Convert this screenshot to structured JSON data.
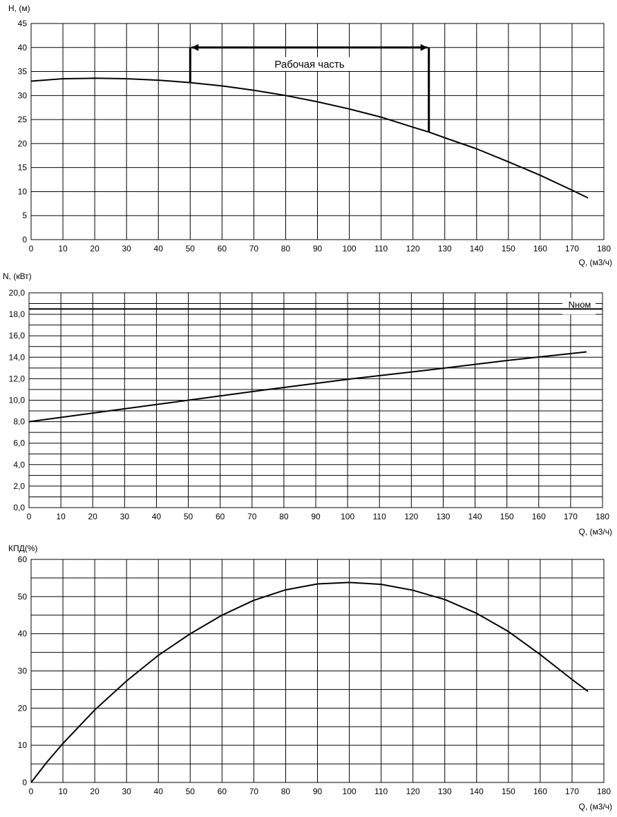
{
  "charts_header": "",
  "chart_data": [
    {
      "type": "line",
      "ylabel": "H, (м)",
      "xlabel": "Q, (м3/ч)",
      "xlim": [
        0,
        180
      ],
      "ylim": [
        0,
        45
      ],
      "xticks": [
        0,
        10,
        20,
        30,
        40,
        50,
        60,
        70,
        80,
        90,
        100,
        110,
        120,
        130,
        140,
        150,
        160,
        170,
        180
      ],
      "xtick_labels": [
        "0",
        "10",
        "20",
        "30",
        "40",
        "50",
        "60",
        "70",
        "80",
        "90",
        "100",
        "110",
        "120",
        "130",
        "140",
        "150",
        "160",
        "170",
        "180"
      ],
      "yticks": [
        0,
        5,
        10,
        15,
        20,
        25,
        30,
        35,
        40,
        45
      ],
      "ytick_labels": [
        "0",
        "5",
        "10",
        "15",
        "20",
        "25",
        "30",
        "35",
        "40",
        "45"
      ],
      "grid": true,
      "series": [
        {
          "x": [
            0,
            10,
            20,
            30,
            40,
            50,
            60,
            70,
            80,
            90,
            100,
            110,
            120,
            125,
            130,
            140,
            150,
            160,
            170,
            175
          ],
          "y": [
            33.0,
            33.5,
            33.6,
            33.5,
            33.2,
            32.7,
            32.0,
            31.1,
            30.0,
            28.7,
            27.2,
            25.5,
            23.4,
            22.4,
            21.2,
            18.9,
            16.2,
            13.4,
            10.3,
            8.7
          ]
        }
      ],
      "annotation": {
        "text": "Рабочая часть",
        "x_range": [
          50,
          125
        ],
        "y": 40,
        "end_y": [
          32.7,
          22.4
        ]
      }
    },
    {
      "type": "line",
      "ylabel": "N, (кВт)",
      "xlabel": "Q, (м3/ч)",
      "xlim": [
        0,
        180
      ],
      "ylim": [
        0,
        20
      ],
      "xticks": [
        0,
        10,
        20,
        30,
        40,
        50,
        60,
        70,
        80,
        90,
        100,
        110,
        120,
        130,
        140,
        150,
        160,
        170,
        180
      ],
      "xtick_labels": [
        "0",
        "10",
        "20",
        "30",
        "40",
        "50",
        "60",
        "70",
        "80",
        "90",
        "100",
        "110",
        "120",
        "130",
        "140",
        "150",
        "160",
        "170",
        "180"
      ],
      "yticks": [
        0,
        2,
        4,
        6,
        8,
        10,
        12,
        14,
        16,
        18,
        20
      ],
      "ytick_labels": [
        "0,0",
        "2,0",
        "4,0",
        "6,0",
        "8,0",
        "10,0",
        "12,0",
        "14,0",
        "16,0",
        "18,0",
        "20,0"
      ],
      "grid": true,
      "series": [
        {
          "x": [
            0,
            25,
            50,
            75,
            100,
            125,
            150,
            175
          ],
          "y": [
            8.0,
            9.0,
            10.0,
            11.0,
            11.95,
            12.8,
            13.7,
            14.5
          ]
        }
      ],
      "reference_line": {
        "label": "Nном",
        "y": 18.5
      }
    },
    {
      "type": "line",
      "ylabel": "КПД(%)",
      "xlabel": "Q, (м3/ч)",
      "xlim": [
        0,
        180
      ],
      "ylim": [
        0,
        60
      ],
      "xticks": [
        0,
        10,
        20,
        30,
        40,
        50,
        60,
        70,
        80,
        90,
        100,
        110,
        120,
        130,
        140,
        150,
        160,
        170,
        180
      ],
      "xtick_labels": [
        "0",
        "10",
        "20",
        "30",
        "40",
        "50",
        "60",
        "70",
        "80",
        "90",
        "100",
        "110",
        "120",
        "130",
        "140",
        "150",
        "160",
        "170",
        "180"
      ],
      "yticks": [
        0,
        10,
        20,
        30,
        40,
        50,
        60
      ],
      "ytick_labels": [
        "0",
        "10",
        "20",
        "30",
        "40",
        "50",
        "60"
      ],
      "grid": true,
      "series": [
        {
          "x": [
            0,
            5,
            10,
            20,
            30,
            40,
            50,
            60,
            70,
            80,
            90,
            100,
            110,
            120,
            130,
            140,
            150,
            160,
            170,
            175
          ],
          "y": [
            0,
            5.5,
            10.5,
            19.5,
            27.3,
            34.2,
            40.0,
            45.0,
            49.0,
            51.8,
            53.4,
            53.8,
            53.3,
            51.7,
            49.2,
            45.5,
            40.6,
            34.4,
            27.7,
            24.5
          ]
        }
      ]
    }
  ]
}
